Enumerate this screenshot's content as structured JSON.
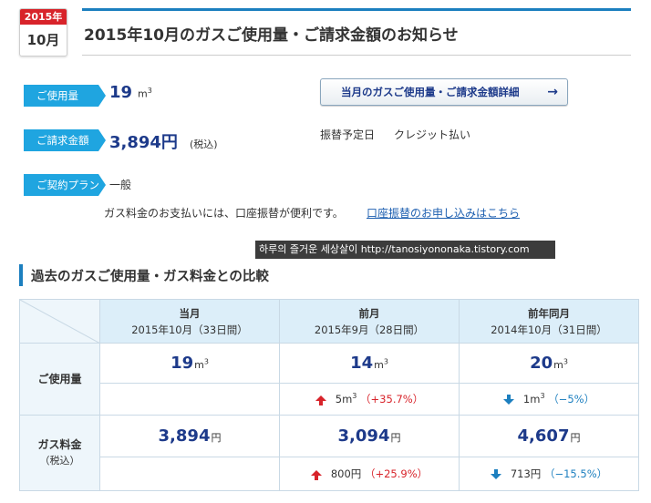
{
  "header": {
    "year_badge": "2015年",
    "month_badge": "10月",
    "title": "2015年10月のガスご使用量・ご請求金額のお知らせ"
  },
  "summary": {
    "usage_label": "ご使用量",
    "usage_value": "19",
    "usage_unit": "m",
    "usage_unit_sup": "3",
    "billing_label": "ご請求金額",
    "billing_value": "3,894円",
    "billing_tax": "(税込)",
    "plan_label": "ご契約プラン",
    "plan_value": "一般",
    "detail_button": "当月のガスご使用量・ご請求金額詳細",
    "payment_label": "振替予定日",
    "payment_value": "クレジット払い",
    "notice_text": "ガス料金のお支払いには、口座振替が便利です。",
    "notice_link": "口座振替のお申し込みはこちら"
  },
  "watermark": "하루의 즐거운 세상살이 http://tanosiyononaka.tistory.com",
  "comparison": {
    "section_title": "過去のガスご使用量・ガス料金との比較",
    "columns": [
      {
        "title": "当月",
        "sub": "2015年10月（33日間）"
      },
      {
        "title": "前月",
        "sub": "2015年9月（28日間）"
      },
      {
        "title": "前年同月",
        "sub": "2014年10月（31日間）"
      }
    ],
    "usage_row": {
      "label": "ご使用量",
      "values": [
        "19",
        "14",
        "20"
      ],
      "unit": "m",
      "unit_sup": "3",
      "diffs": [
        {
          "amount": "",
          "amount_sup": "",
          "pct": ""
        },
        {
          "amount": "5m",
          "amount_sup": "3",
          "pct": "（+35.7%）",
          "direction": "up"
        },
        {
          "amount": "1m",
          "amount_sup": "3",
          "pct": "（−5%）",
          "direction": "down"
        }
      ]
    },
    "fee_row": {
      "label": "ガス料金",
      "sublabel": "（税込）",
      "values": [
        "3,894",
        "3,094",
        "4,607"
      ],
      "unit": "円",
      "diffs": [
        {
          "amount": "",
          "pct": ""
        },
        {
          "amount": "800円",
          "pct": "（+25.9%）",
          "direction": "up"
        },
        {
          "amount": "713円",
          "pct": "（−15.5%）",
          "direction": "down"
        }
      ]
    }
  },
  "colors": {
    "accent_blue": "#1c7fbf",
    "label_blue": "#1fa5e0",
    "value_navy": "#1d3a8a",
    "increase_red": "#d8232a",
    "table_header_bg": "#dceef9"
  }
}
